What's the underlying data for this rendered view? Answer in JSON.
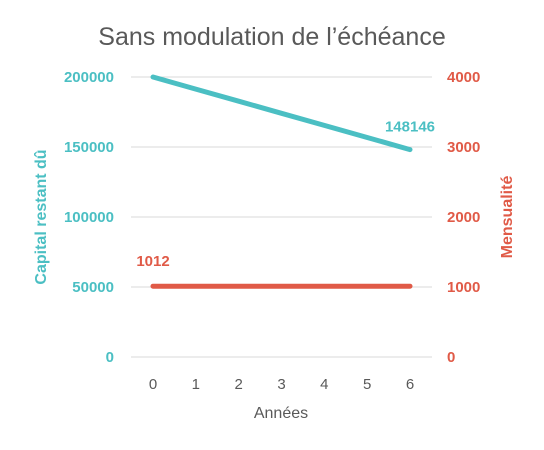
{
  "chart_data": {
    "type": "line",
    "title": "Sans modulation de l’échéance",
    "xlabel": "Années",
    "x": [
      0,
      1,
      2,
      3,
      4,
      5,
      6
    ],
    "grid": true,
    "legend": "none",
    "y_left": {
      "label": "Capital restant dû",
      "range": [
        0,
        200000
      ],
      "ticks": [
        0,
        50000,
        100000,
        150000,
        200000
      ],
      "color": "#4bbfc3"
    },
    "y_right": {
      "label": "Mensualité",
      "range": [
        0,
        4000
      ],
      "ticks": [
        0,
        1000,
        2000,
        3000,
        4000
      ],
      "color": "#e05a47"
    },
    "series": [
      {
        "axis": "left",
        "color": "#4bbfc3",
        "values": [
          200000,
          191358,
          182716,
          174073,
          165431,
          156789,
          148146
        ],
        "data_label": {
          "index": 6,
          "text": "148146"
        }
      },
      {
        "axis": "right",
        "color": "#e05a47",
        "values": [
          1012,
          1012,
          1012,
          1012,
          1012,
          1012,
          1012
        ],
        "data_label": {
          "index": 0,
          "text": "1012"
        }
      }
    ]
  }
}
